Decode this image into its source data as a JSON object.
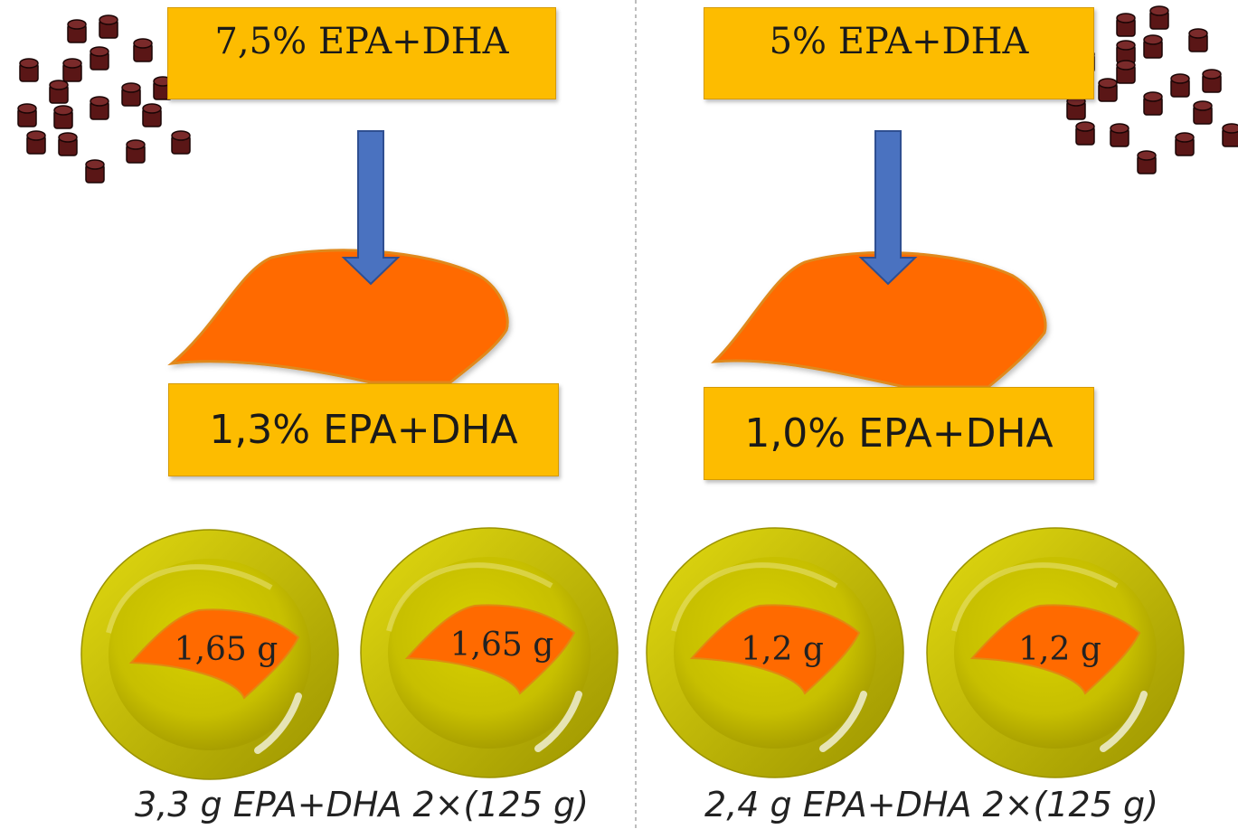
{
  "left": {
    "source_concentration": "7,5% EPA+DHA",
    "fillet_concentration": "1,3% EPA+DHA",
    "portions": [
      "1,65 g",
      "1,65 g"
    ],
    "total_caption": "3,3 g EPA+DHA 2×(125 g)"
  },
  "right": {
    "source_concentration": "5% EPA+DHA",
    "fillet_concentration": "1,0% EPA+DHA",
    "portions": [
      "1,2 g",
      "1,2 g"
    ],
    "total_caption": "2,4 g EPA+DHA 2×(125 g)"
  },
  "colors": {
    "box": "#fdbc00",
    "arrow": "#4a72c0",
    "fillet": "#ff6a00",
    "plate": "#c8c200",
    "pellet": "#5a1616"
  }
}
